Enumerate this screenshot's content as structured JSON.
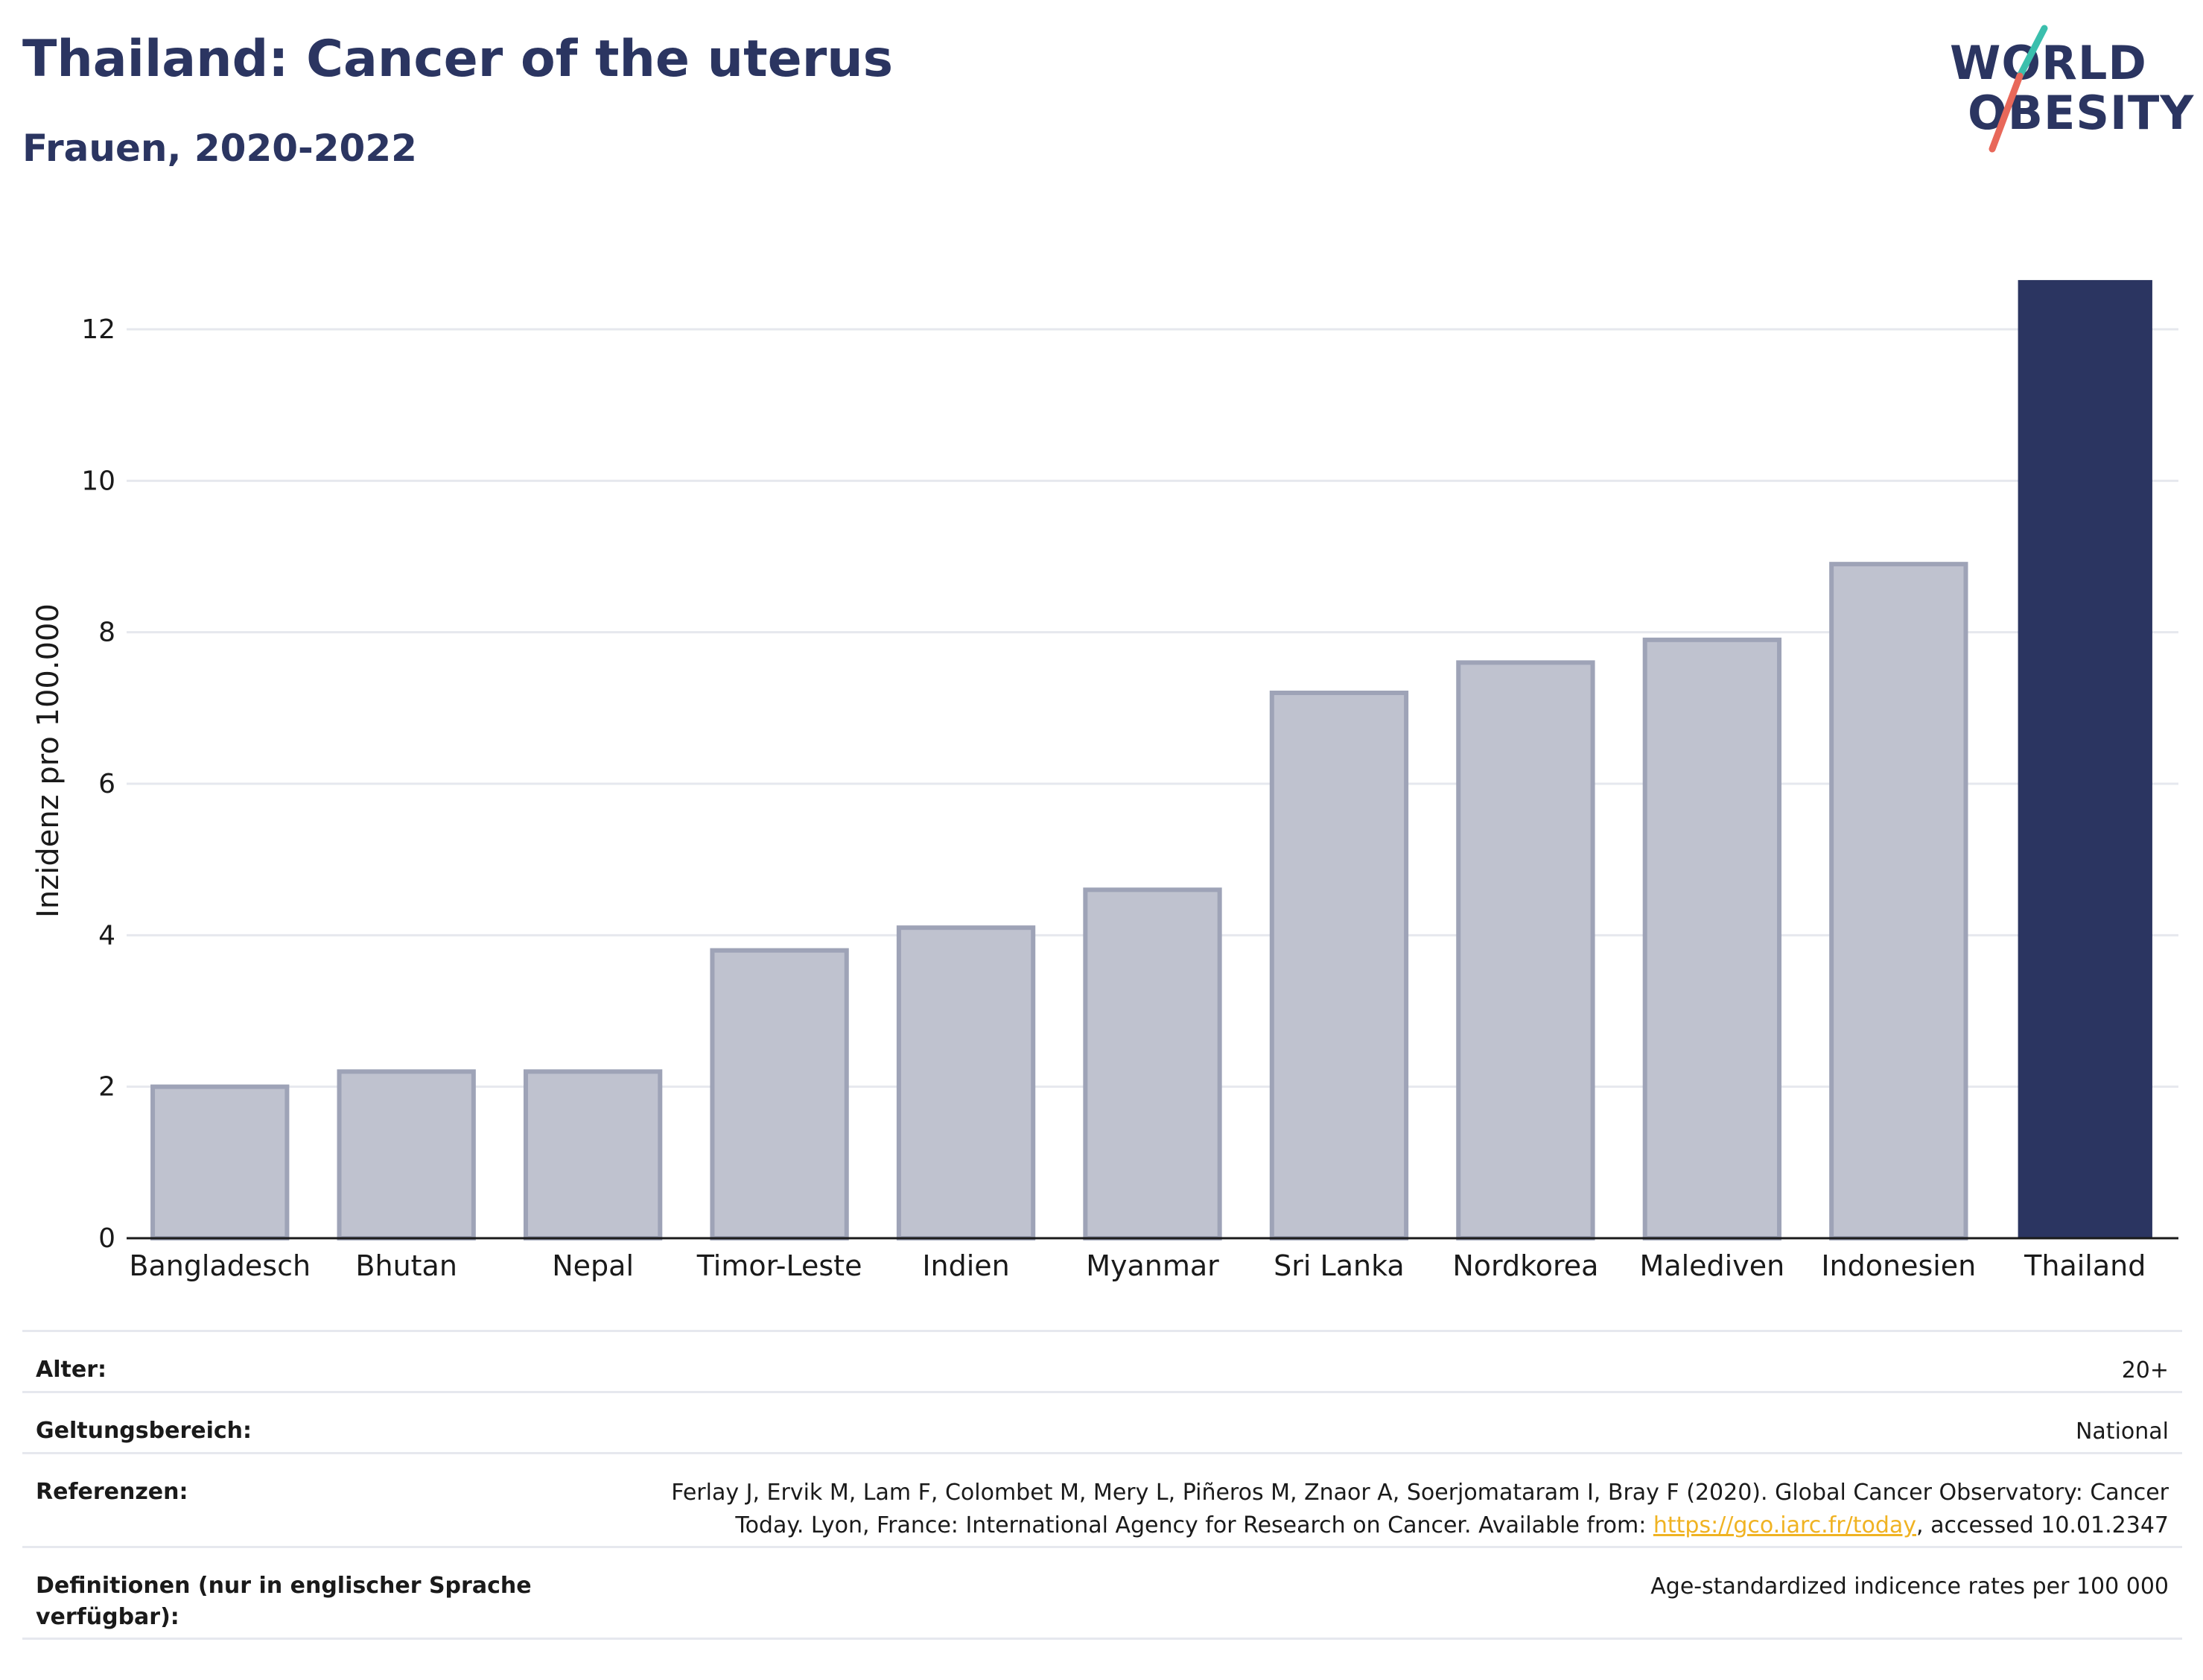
{
  "header": {
    "title": "Thailand: Cancer of the uterus",
    "subtitle": "Frauen, 2020-2022"
  },
  "logo": {
    "line1": "WORLD",
    "line2": "OBESITY",
    "accent_teal": "#3bbfad",
    "accent_coral": "#e8685a"
  },
  "colors": {
    "highlight": "#2b3561",
    "bar_fill": "#bfc2cf",
    "bar_stroke": "#9ea3b7",
    "grid": "#e6e8ee",
    "axis": "#1a1a1a"
  },
  "chart_data": {
    "type": "bar",
    "title": "Thailand: Cancer of the uterus",
    "subtitle": "Frauen, 2020-2022",
    "xlabel": "",
    "ylabel": "Inzidenz pro 100.000",
    "categories": [
      "Bangladesch",
      "Bhutan",
      "Nepal",
      "Timor-Leste",
      "Indien",
      "Myanmar",
      "Sri Lanka",
      "Nordkorea",
      "Malediven",
      "Indonesien",
      "Thailand"
    ],
    "values": [
      2.0,
      2.2,
      2.2,
      3.8,
      4.1,
      4.6,
      7.2,
      7.6,
      7.9,
      8.9,
      12.65
    ],
    "highlight": "Thailand",
    "ylim": [
      0,
      13.2
    ],
    "yticks": [
      0,
      2,
      4,
      6,
      8,
      10,
      12
    ],
    "grid": true,
    "legend": "none"
  },
  "meta": {
    "age_label": "Alter:",
    "age_value": "20+",
    "scope_label": "Geltungsbereich:",
    "scope_value": "National",
    "ref_label": "Referenzen:",
    "ref_line1": "Ferlay J, Ervik M, Lam F, Colombet M, Mery L, Piñeros M, Znaor A, Soerjomataram I, Bray F (2020). Global Cancer Observatory: Cancer",
    "ref_line2_pre": "Today. Lyon, France: International Agency for Research on Cancer. Available from: ",
    "ref_link": "https://gco.iarc.fr/today",
    "ref_line2_post": ", accessed 10.01.2347",
    "def_label": "Definitionen (nur in englischer Sprache verfügbar):",
    "def_value": "Age-standardized indicence rates per 100 000"
  }
}
